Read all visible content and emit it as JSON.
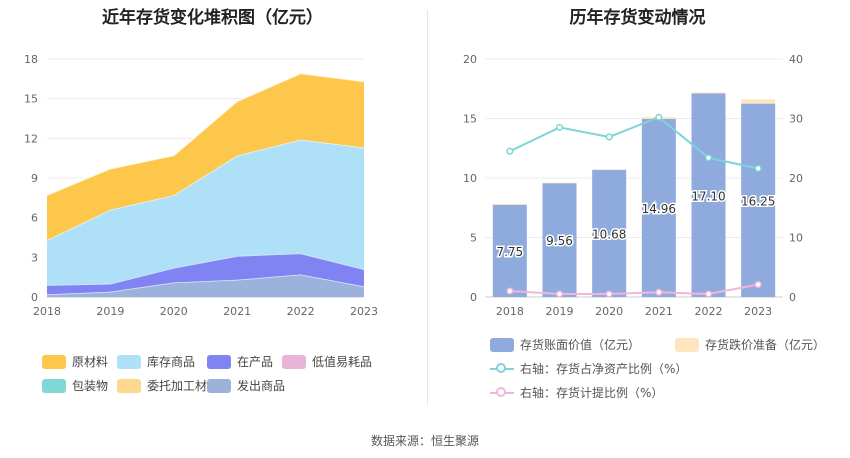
{
  "source_text": "数据来源：恒生聚源",
  "chart_data": [
    {
      "type": "area",
      "title": "近年存货变化堆积图（亿元）",
      "x": [
        "2018",
        "2019",
        "2020",
        "2021",
        "2022",
        "2023"
      ],
      "y_ticks": [
        0,
        3,
        6,
        9,
        12,
        15,
        18
      ],
      "ylim": [
        0,
        18
      ],
      "grid": true,
      "legend_position": "bottom",
      "series": [
        {
          "name": "原材料",
          "color": "#fcc74a",
          "values": [
            3.4,
            3.1,
            3.0,
            4.1,
            5.0,
            5.0
          ]
        },
        {
          "name": "库存商品",
          "color": "#aee0f8",
          "values": [
            3.4,
            5.6,
            5.5,
            7.6,
            8.6,
            9.2
          ]
        },
        {
          "name": "在产品",
          "color": "#8084f2",
          "values": [
            0.7,
            0.6,
            1.1,
            1.8,
            1.6,
            1.3
          ]
        },
        {
          "name": "低值易耗品",
          "color": "#e8b5d8",
          "values": [
            0,
            0,
            0,
            0,
            0,
            0
          ]
        },
        {
          "name": "包装物",
          "color": "#7fd7d7",
          "values": [
            0,
            0,
            0,
            0,
            0,
            0
          ]
        },
        {
          "name": "委托加工材料",
          "color": "#fcd98e",
          "values": [
            0,
            0,
            0,
            0,
            0,
            0
          ]
        },
        {
          "name": "发出商品",
          "color": "#9bb3dc",
          "values": [
            0.2,
            0.4,
            1.1,
            1.3,
            1.7,
            0.8
          ]
        }
      ]
    },
    {
      "type": "bar",
      "title": "历年存货变动情况",
      "categories": [
        "2018",
        "2019",
        "2020",
        "2021",
        "2022",
        "2023"
      ],
      "y_left_ticks": [
        0,
        5,
        10,
        15,
        20
      ],
      "ylim_left": [
        0,
        20
      ],
      "y_right_ticks": [
        0,
        10,
        20,
        30,
        40
      ],
      "ylim_right": [
        0,
        40
      ],
      "grid": true,
      "legend_position": "bottom",
      "series": [
        {
          "name": "存货账面价值（亿元）",
          "color": "#8faadc",
          "axis": "left",
          "kind": "bar",
          "values": [
            7.75,
            9.56,
            10.68,
            14.96,
            17.1,
            16.25
          ],
          "labels": [
            "7.75",
            "9.56",
            "10.68",
            "14.96",
            "17.10",
            "16.25"
          ]
        },
        {
          "name": "存货跌价准备（亿元）",
          "color": "#fce5bf",
          "axis": "left",
          "kind": "bar",
          "values": [
            0.08,
            0.05,
            0.05,
            0.15,
            0.1,
            0.35
          ]
        },
        {
          "name": "右轴：存货占净资产比例（%）",
          "color": "#7ed3d8",
          "axis": "right",
          "kind": "line",
          "values": [
            24.5,
            28.5,
            26.9,
            30.2,
            23.4,
            21.6
          ]
        },
        {
          "name": "右轴：存货计提比例（%）",
          "color": "#f2b6dc",
          "axis": "right",
          "kind": "line",
          "values": [
            1.0,
            0.5,
            0.5,
            0.8,
            0.5,
            2.1
          ]
        }
      ]
    }
  ]
}
